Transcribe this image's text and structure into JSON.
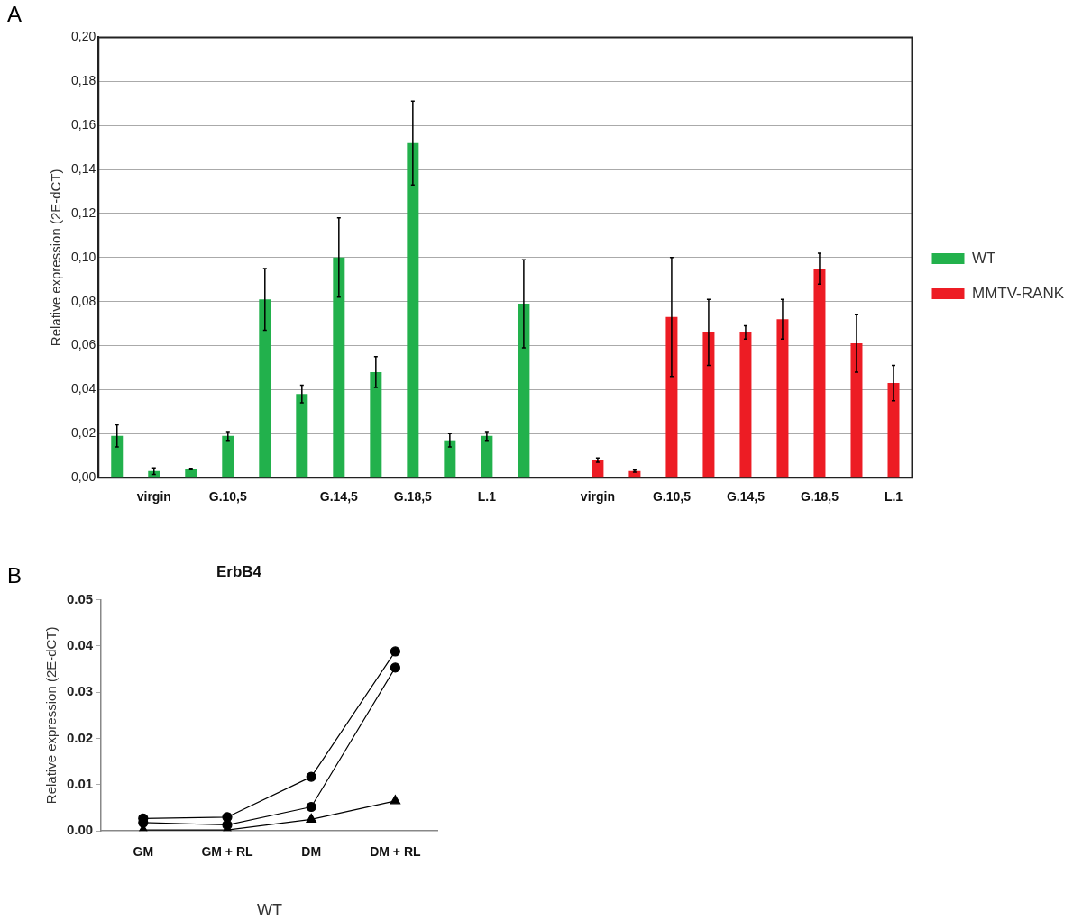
{
  "chart_data": [
    {
      "type": "bar",
      "ylabel": "Relative expression (2E-dCT)",
      "annotations": [
        "A"
      ],
      "categories": [
        null,
        "virgin",
        null,
        "G.10,5",
        null,
        null,
        "G.14,5",
        null,
        "G.18,5",
        null,
        "L.1",
        null,
        null,
        "virgin",
        null,
        "G.10,5",
        null,
        "G.14,5",
        null,
        "G.18,5",
        null,
        "L.1"
      ],
      "series": [
        {
          "name": "WT",
          "color": "#22b14c",
          "values": [
            0.019,
            0.003,
            0.004,
            0.019,
            0.081,
            0.038,
            0.1,
            0.048,
            0.152,
            0.017,
            0.019,
            0.079,
            null,
            null,
            null,
            null,
            null,
            null,
            null,
            null,
            null,
            null
          ],
          "errors": [
            0.005,
            0.0015,
            0.0003,
            0.002,
            0.014,
            0.004,
            0.018,
            0.007,
            0.019,
            0.003,
            0.002,
            0.02,
            null,
            null,
            null,
            null,
            null,
            null,
            null,
            null,
            null,
            null
          ]
        },
        {
          "name": "MMTV-RANK",
          "color": "#ed1c24",
          "values": [
            null,
            null,
            null,
            null,
            null,
            null,
            null,
            null,
            null,
            null,
            null,
            null,
            null,
            0.008,
            0.003,
            0.073,
            0.066,
            0.066,
            0.072,
            0.095,
            0.061,
            0.043
          ],
          "errors": [
            null,
            null,
            null,
            null,
            null,
            null,
            null,
            null,
            null,
            null,
            null,
            null,
            null,
            0.001,
            0.0005,
            0.027,
            0.015,
            0.003,
            0.009,
            0.007,
            0.013,
            0.008
          ]
        }
      ],
      "ylim": [
        0,
        0.2
      ],
      "yticks": [
        {
          "value": 0,
          "label": "0,00"
        },
        {
          "value": 0.02,
          "label": "0,02"
        },
        {
          "value": 0.04,
          "label": "0,04"
        },
        {
          "value": 0.06,
          "label": "0,06"
        },
        {
          "value": 0.08,
          "label": "0,08"
        },
        {
          "value": 0.1,
          "label": "0,10"
        },
        {
          "value": 0.12,
          "label": "0,12"
        },
        {
          "value": 0.14,
          "label": "0,14"
        },
        {
          "value": 0.16,
          "label": "0,16"
        },
        {
          "value": 0.18,
          "label": "0,18"
        },
        {
          "value": 0.2,
          "label": "0,20"
        }
      ],
      "grid": "y",
      "legend": "right"
    },
    {
      "type": "line",
      "title": "ErbB4",
      "ylabel": "Relative expression (2E-dCT)",
      "annotations": [
        "B",
        "WT"
      ],
      "categories": [
        "GM",
        "GM + RL",
        "DM",
        "DM + RL"
      ],
      "series": [
        {
          "color": "#000000",
          "marker": "circle",
          "values": [
            0.0027,
            0.003,
            0.0117,
            0.0388
          ]
        },
        {
          "color": "#000000",
          "marker": "circle",
          "values": [
            0.0018,
            0.0013,
            0.0052,
            0.0353
          ]
        },
        {
          "color": "#000000",
          "marker": "triangle",
          "values": [
            0.0002,
            0.0002,
            0.0025,
            0.0065
          ]
        }
      ],
      "ylim": [
        0,
        0.05
      ],
      "yticks": [
        {
          "value": 0,
          "label": "0.00"
        },
        {
          "value": 0.01,
          "label": "0.01"
        },
        {
          "value": 0.02,
          "label": "0.02"
        },
        {
          "value": 0.03,
          "label": "0.03"
        },
        {
          "value": 0.04,
          "label": "0.04"
        },
        {
          "value": 0.05,
          "label": "0.05"
        }
      ],
      "grid": false,
      "legend": false,
      "line_style": "solid"
    }
  ]
}
